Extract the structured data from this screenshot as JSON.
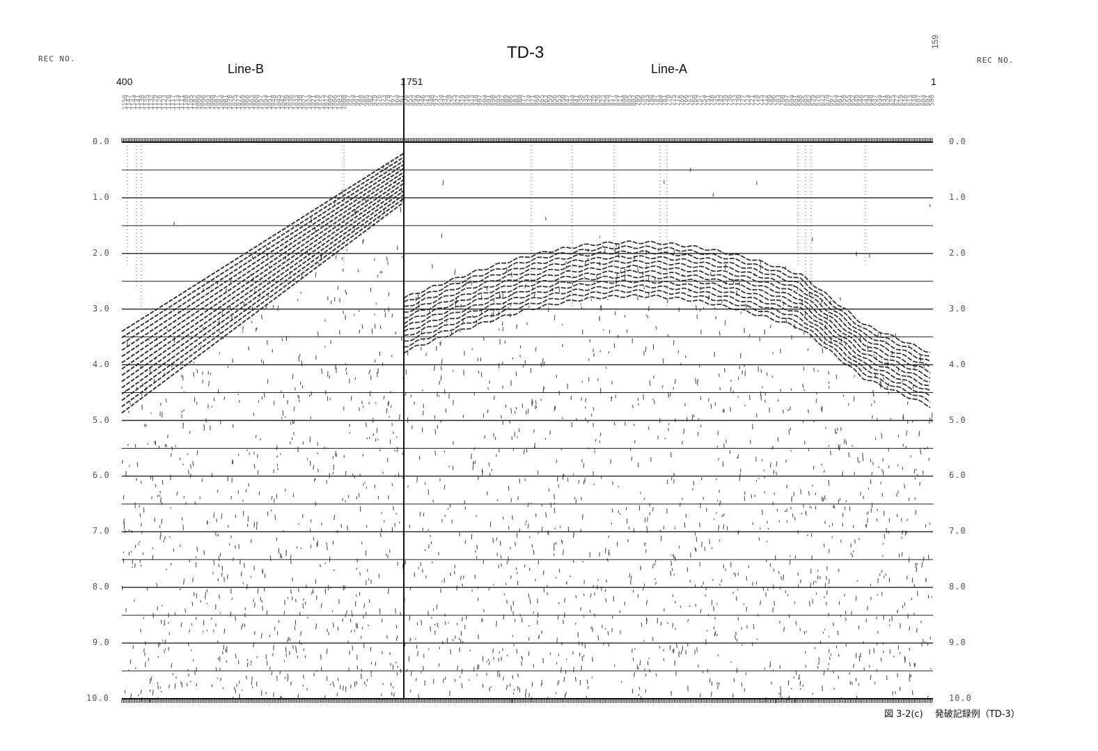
{
  "title": "TD-3",
  "rec_no_left": "REC NO.",
  "rec_no_right": "REC NO.",
  "line_b": "Line-B",
  "line_a": "Line-A",
  "rec_start_left": "400",
  "rec_mid_left": "1",
  "rec_mid_right": "751",
  "rec_end": "1",
  "rec_right_vertical": "159",
  "caption": "図 3-2(c)　 発破記録例（TD-3）",
  "time_axis": {
    "ticks": [
      "0.0",
      "1.0",
      "2.0",
      "3.0",
      "4.0",
      "5.0",
      "6.0",
      "7.0",
      "8.0",
      "9.0",
      "10.0"
    ],
    "range": [
      0,
      10
    ]
  },
  "colors": {
    "ink": "#111111",
    "grid": "#222222",
    "paper": "#ffffff"
  }
}
